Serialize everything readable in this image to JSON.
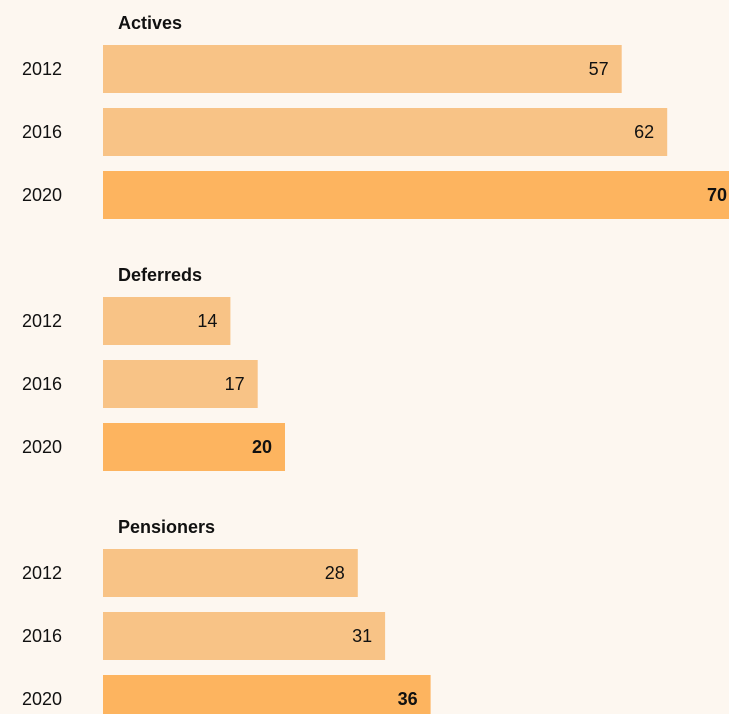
{
  "chart_data": [
    {
      "type": "bar",
      "title": "Actives",
      "categories": [
        "2012",
        "2016",
        "2020"
      ],
      "values": [
        57,
        62,
        70
      ],
      "colors": [
        "#f8c386",
        "#f8c386",
        "#fdb45f"
      ],
      "label_weights": [
        "normal",
        "normal",
        "bold"
      ]
    },
    {
      "type": "bar",
      "title": "Deferreds",
      "categories": [
        "2012",
        "2016",
        "2020"
      ],
      "values": [
        14,
        17,
        20
      ],
      "colors": [
        "#f8c386",
        "#f8c386",
        "#fdb45f"
      ],
      "label_weights": [
        "normal",
        "normal",
        "bold"
      ]
    },
    {
      "type": "bar",
      "title": "Pensioners",
      "categories": [
        "2012",
        "2016",
        "2020"
      ],
      "values": [
        28,
        31,
        36
      ],
      "colors": [
        "#f8c386",
        "#f8c386",
        "#fdb45f"
      ],
      "label_weights": [
        "normal",
        "normal",
        "bold"
      ]
    }
  ]
}
